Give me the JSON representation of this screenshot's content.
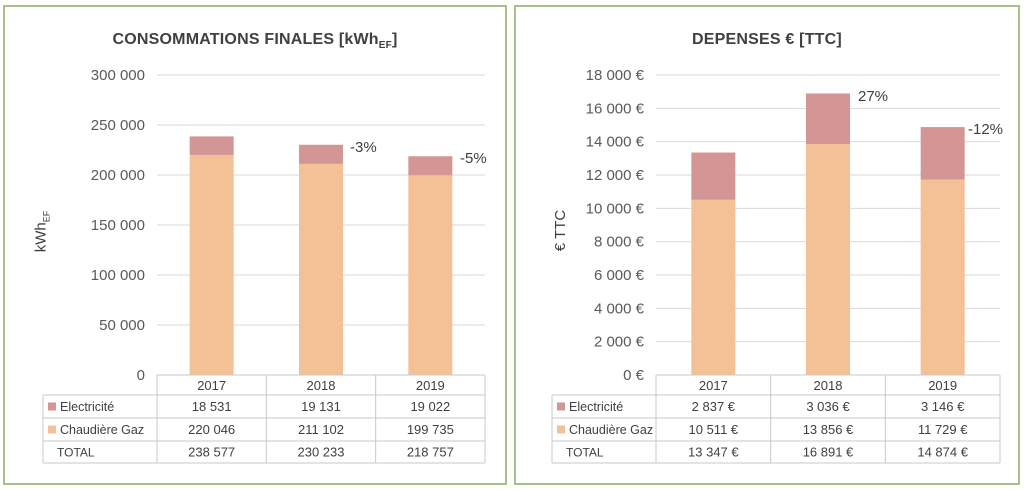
{
  "colors": {
    "electricite": "#d49694",
    "gaz": "#f4c096",
    "grid": "#d9d9d9",
    "border": "#a9c08a",
    "text": "#404040"
  },
  "chart_data": [
    {
      "type": "bar",
      "stacked": true,
      "title": "CONSOMMATIONS FINALES [kWhEF]",
      "title_main": "CONSOMMATIONS FINALES [kWh",
      "title_sub": "EF",
      "title_end": "]",
      "ylabel_main": "kWh",
      "ylabel_sub": "EF",
      "categories": [
        "2017",
        "2018",
        "2019"
      ],
      "ylim": [
        0,
        300000
      ],
      "yticks": [
        0,
        50000,
        100000,
        150000,
        200000,
        250000,
        300000
      ],
      "ytick_labels": [
        "0",
        "50 000",
        "100 000",
        "150 000",
        "200 000",
        "250 000",
        "300 000"
      ],
      "grid": true,
      "series": [
        {
          "name": "Chaudière Gaz",
          "color_key": "gaz",
          "values": [
            220046,
            211102,
            199735
          ],
          "labels": [
            "220 046",
            "211 102",
            "199 735"
          ]
        },
        {
          "name": "Electricité",
          "color_key": "electricite",
          "values": [
            18531,
            19131,
            19022
          ],
          "labels": [
            "18 531",
            "19 131",
            "19 022"
          ]
        }
      ],
      "totals": [
        238577,
        230233,
        218757
      ],
      "total_label": "TOTAL",
      "total_labels": [
        "238 577",
        "230 233",
        "218 757"
      ],
      "annotations": [
        "",
        "-3%",
        "-5%"
      ]
    },
    {
      "type": "bar",
      "stacked": true,
      "title": "DEPENSES € [TTC]",
      "title_main": "DEPENSES € [TTC]",
      "title_sub": "",
      "title_end": "",
      "ylabel_main": "€ TTC",
      "ylabel_sub": "",
      "categories": [
        "2017",
        "2018",
        "2019"
      ],
      "ylim": [
        0,
        18000
      ],
      "yticks": [
        0,
        2000,
        4000,
        6000,
        8000,
        10000,
        12000,
        14000,
        16000,
        18000
      ],
      "ytick_labels": [
        "0 €",
        "2 000 €",
        "4 000 €",
        "6 000 €",
        "8 000 €",
        "10 000 €",
        "12 000 €",
        "14 000 €",
        "16 000 €",
        "18 000 €"
      ],
      "grid": true,
      "series": [
        {
          "name": "Chaudière Gaz",
          "color_key": "gaz",
          "values": [
            10511,
            13856,
            11729
          ],
          "labels": [
            "10 511 €",
            "13 856 €",
            "11 729 €"
          ]
        },
        {
          "name": "Electricité",
          "color_key": "electricite",
          "values": [
            2837,
            3036,
            3146
          ],
          "labels": [
            "2 837 €",
            "3 036 €",
            "3 146 €"
          ]
        }
      ],
      "totals": [
        13347,
        16891,
        14874
      ],
      "total_label": "TOTAL",
      "total_labels": [
        "13 347 €",
        "16 891 €",
        "14 874 €"
      ],
      "annotations": [
        "",
        "27%",
        "-12%"
      ]
    }
  ]
}
